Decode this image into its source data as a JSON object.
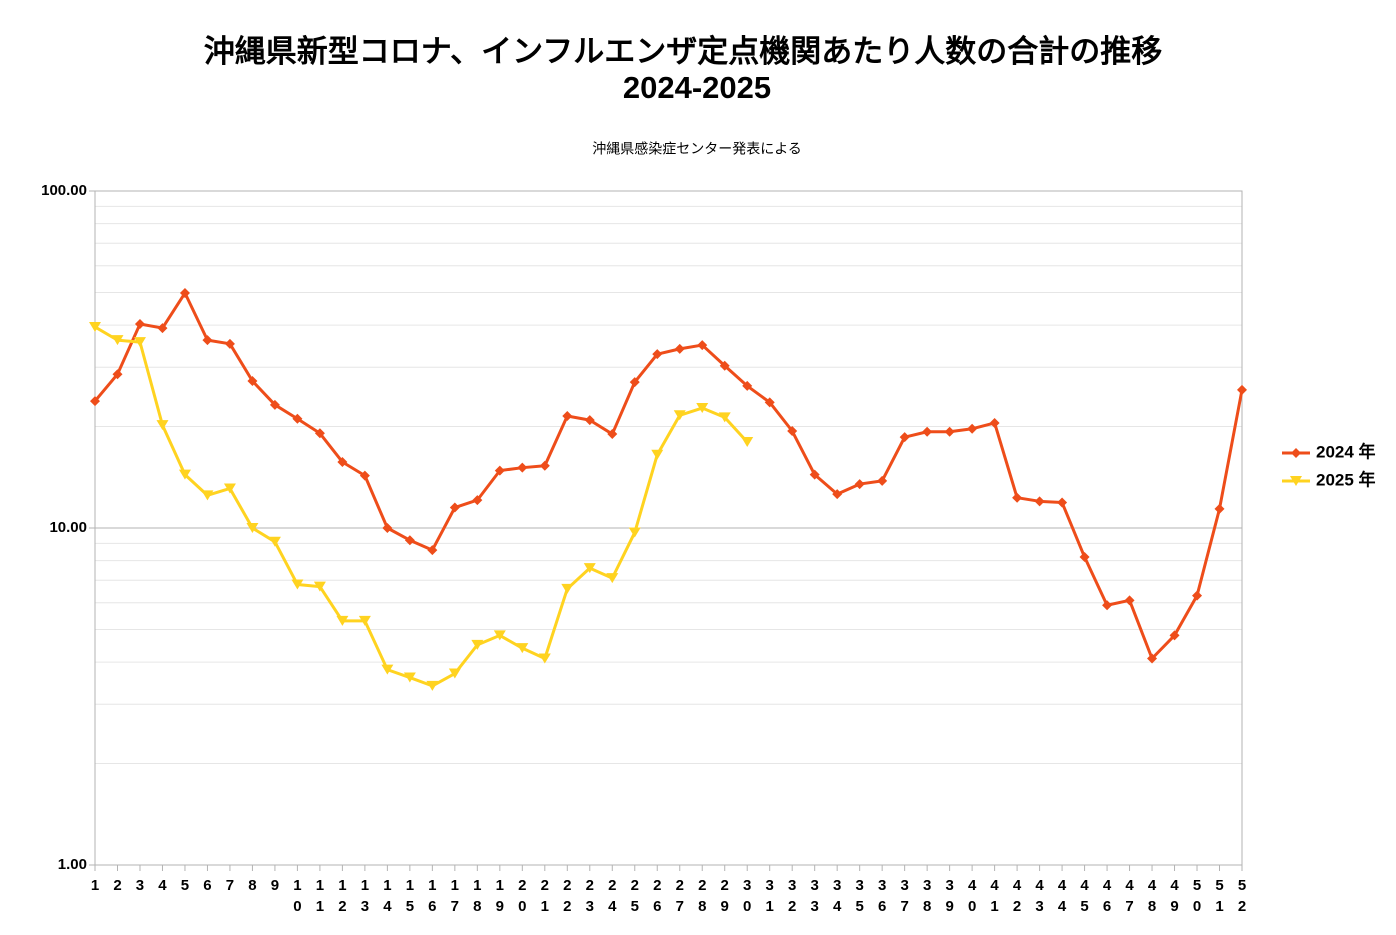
{
  "chart_data": {
    "type": "line",
    "title": [
      "沖縄県新型コロナ、インフルエンザ定点機関あたり人数の合計の推移",
      "2024-2025"
    ],
    "subtitle": "沖縄県感染症センター発表による",
    "categories": [
      "1",
      "2",
      "3",
      "4",
      "5",
      "6",
      "7",
      "8",
      "9",
      "10",
      "11",
      "12",
      "13",
      "14",
      "15",
      "16",
      "17",
      "18",
      "19",
      "20",
      "21",
      "22",
      "23",
      "24",
      "25",
      "26",
      "27",
      "28",
      "29",
      "30",
      "31",
      "32",
      "33",
      "34",
      "35",
      "36",
      "37",
      "38",
      "39",
      "40",
      "41",
      "42",
      "43",
      "44",
      "45",
      "46",
      "47",
      "48",
      "49",
      "50",
      "51",
      "52"
    ],
    "series": [
      {
        "name": "2024 年",
        "color": "#ee4d1a",
        "marker": "diamond",
        "values": [
          23.8,
          28.6,
          40.3,
          39.2,
          49.8,
          36.1,
          35.2,
          27.3,
          23.2,
          21.1,
          19.1,
          15.7,
          14.3,
          10.0,
          9.2,
          8.6,
          11.5,
          12.1,
          14.8,
          15.1,
          15.3,
          21.5,
          20.9,
          19.0,
          27.1,
          32.8,
          34.0,
          34.9,
          30.3,
          26.4,
          23.6,
          19.4,
          14.4,
          12.6,
          13.5,
          13.8,
          18.6,
          19.3,
          19.3,
          19.7,
          20.5,
          12.3,
          12.0,
          11.9,
          8.2,
          5.9,
          6.1,
          4.1,
          4.8,
          6.3,
          11.4,
          25.7
        ]
      },
      {
        "name": "2025 年",
        "color": "#ffd320",
        "marker": "triangle-down",
        "values": [
          39.5,
          36.1,
          35.6,
          20.2,
          14.4,
          12.5,
          13.1,
          10.0,
          9.1,
          6.8,
          6.7,
          5.3,
          5.3,
          3.8,
          3.6,
          3.4,
          3.7,
          4.5,
          4.8,
          4.4,
          4.1,
          6.6,
          7.6,
          7.1,
          9.7,
          16.5,
          21.6,
          22.7,
          21.3,
          18.0,
          null,
          null,
          null,
          null,
          null,
          null,
          null,
          null,
          null,
          null,
          null,
          null,
          null,
          null,
          null,
          null,
          null,
          null,
          null,
          null,
          null,
          null
        ]
      }
    ],
    "ylim": [
      1,
      100
    ],
    "yticks": [
      {
        "value": 1,
        "label": "1.00"
      },
      {
        "value": 10,
        "label": "10.00"
      },
      {
        "value": 100,
        "label": "100.00"
      }
    ],
    "log_scale": true,
    "grid": true,
    "minor_grid": true,
    "legend": "right"
  }
}
